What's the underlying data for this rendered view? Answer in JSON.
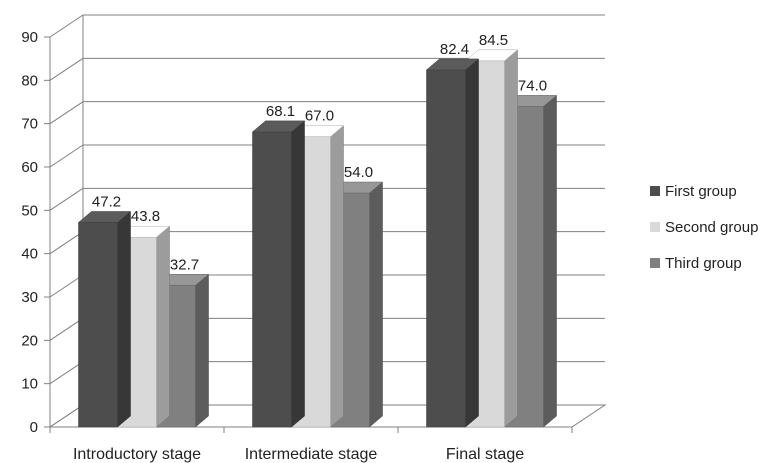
{
  "chart_data": {
    "type": "bar",
    "style": "3d-clustered-column",
    "categories": [
      "Introductory stage",
      "Intermediate stage",
      "Final stage"
    ],
    "series": [
      {
        "name": "First group",
        "values": [
          47.2,
          68.1,
          82.4
        ],
        "labels": [
          "47.2",
          "68.1",
          "82.4"
        ]
      },
      {
        "name": "Second group",
        "values": [
          43.8,
          67.0,
          84.5
        ],
        "labels": [
          "43.8",
          "67.0",
          "84.5"
        ]
      },
      {
        "name": "Third group",
        "values": [
          32.7,
          54.0,
          74.0
        ],
        "labels": [
          "32.7",
          "54.0",
          "74.0"
        ]
      }
    ],
    "ylim": [
      0,
      90
    ],
    "yticks": [
      "0",
      "10",
      "20",
      "30",
      "40",
      "50",
      "60",
      "70",
      "80",
      "90"
    ],
    "grid": true,
    "legend": "right",
    "colors": [
      "#4d4d4d",
      "#d9d9d9",
      "#808080"
    ]
  }
}
